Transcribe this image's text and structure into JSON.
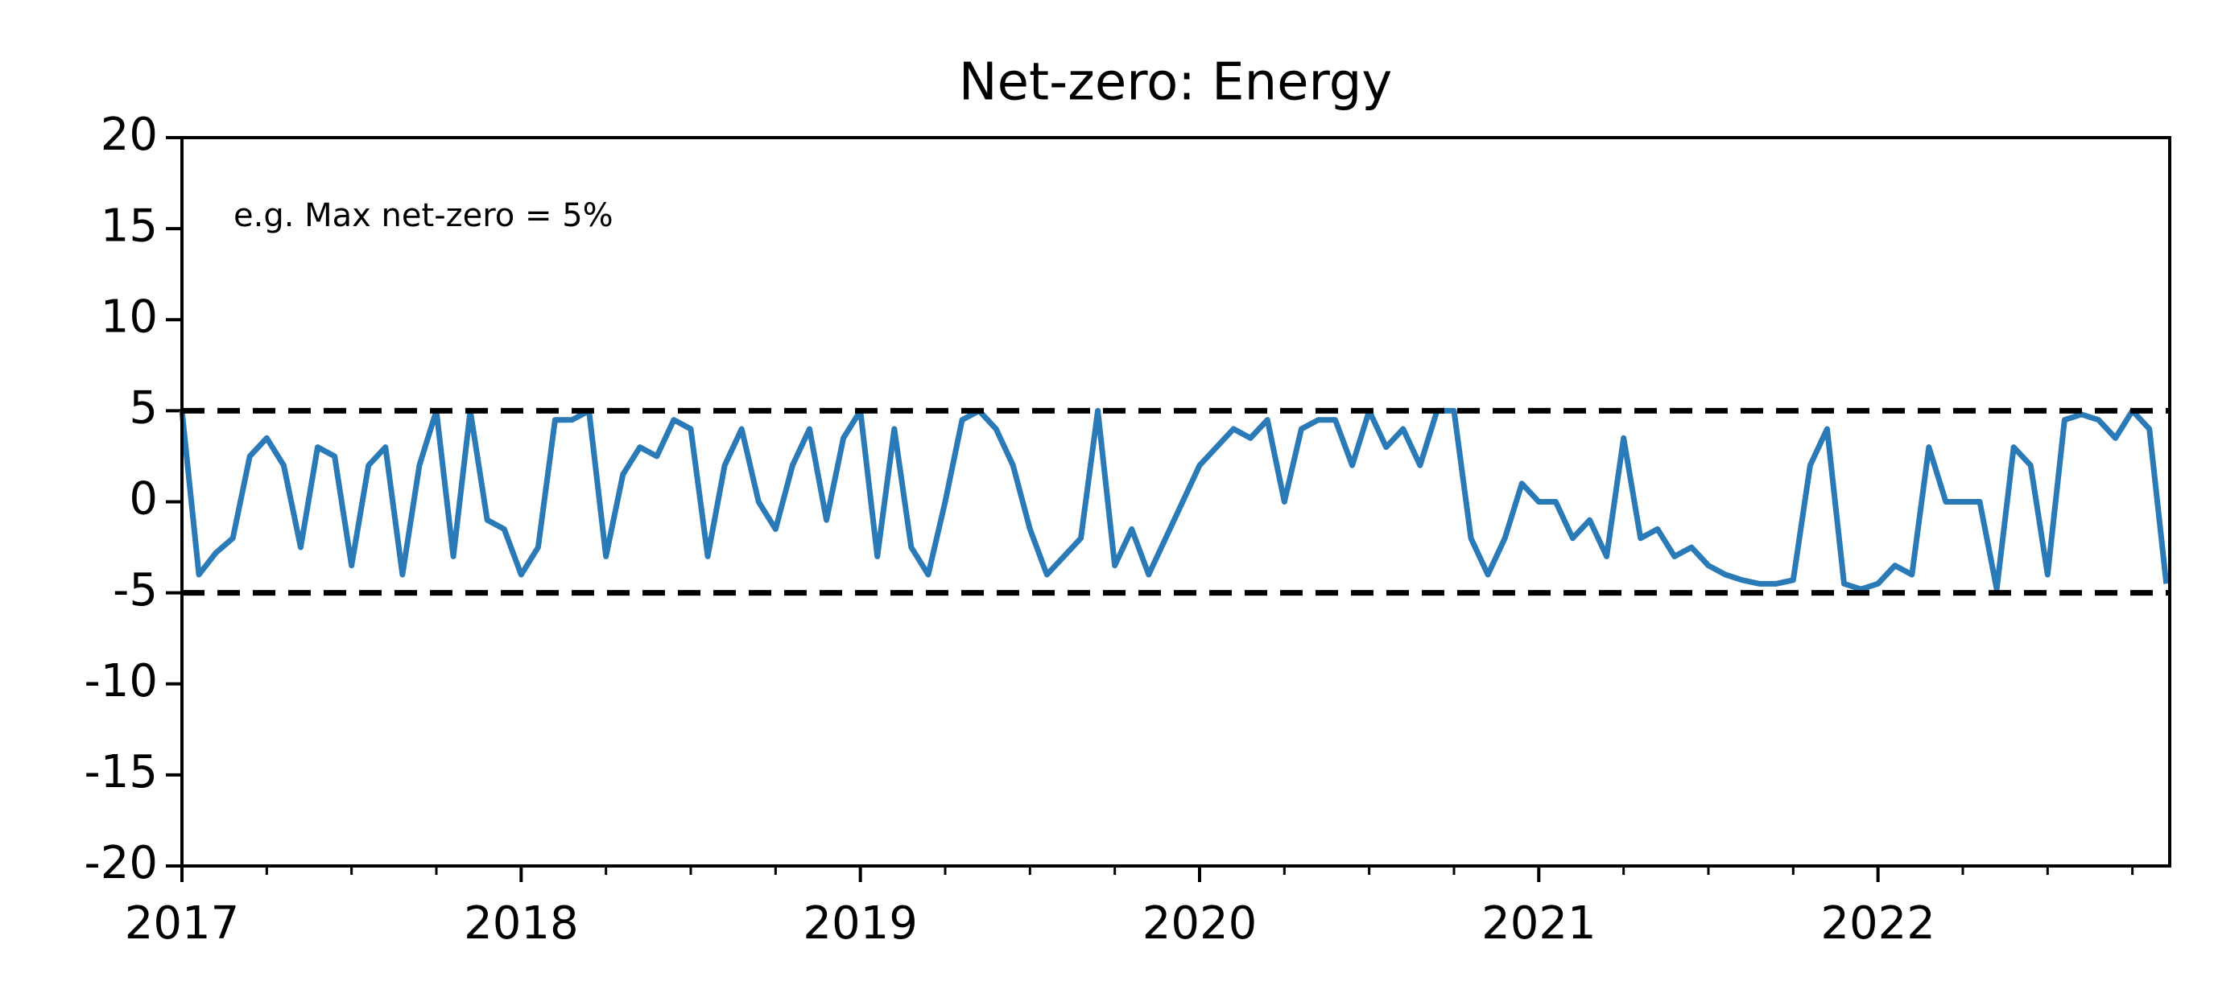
{
  "chart_data": {
    "type": "line",
    "title": "Net-zero: Energy",
    "annotation": "e.g. Max net-zero = 5%",
    "x": [
      2017,
      2017.05,
      2017.1,
      2017.15,
      2017.2,
      2017.25,
      2017.3,
      2017.35,
      2017.4,
      2017.45,
      2017.5,
      2017.55,
      2017.6,
      2017.65,
      2017.7,
      2017.75,
      2017.8,
      2017.85,
      2017.9,
      2017.95,
      2018,
      2018.05,
      2018.1,
      2018.15,
      2018.2,
      2018.25,
      2018.3,
      2018.35,
      2018.4,
      2018.45,
      2018.5,
      2018.55,
      2018.6,
      2018.65,
      2018.7,
      2018.75,
      2018.8,
      2018.85,
      2018.9,
      2018.95,
      2019,
      2019.05,
      2019.1,
      2019.15,
      2019.2,
      2019.25,
      2019.3,
      2019.35,
      2019.4,
      2019.45,
      2019.5,
      2019.55,
      2019.6,
      2019.65,
      2019.7,
      2019.75,
      2019.8,
      2019.85,
      2019.9,
      2019.95,
      2020,
      2020.05,
      2020.1,
      2020.15,
      2020.2,
      2020.25,
      2020.3,
      2020.35,
      2020.4,
      2020.45,
      2020.5,
      2020.55,
      2020.6,
      2020.65,
      2020.7,
      2020.75,
      2020.8,
      2020.85,
      2020.9,
      2020.95,
      2021,
      2021.05,
      2021.1,
      2021.15,
      2021.2,
      2021.25,
      2021.3,
      2021.35,
      2021.4,
      2021.45,
      2021.5,
      2021.55,
      2021.6,
      2021.65,
      2021.7,
      2021.75,
      2021.8,
      2021.85,
      2021.9,
      2021.95,
      2022,
      2022.05,
      2022.1,
      2022.15,
      2022.2,
      2022.25,
      2022.3,
      2022.35,
      2022.4,
      2022.45,
      2022.5,
      2022.55,
      2022.6,
      2022.65,
      2022.7,
      2022.75,
      2022.8,
      2022.85
    ],
    "series": [
      {
        "name": "Energy",
        "color": "#2a7ab8",
        "values": [
          5,
          -4,
          -2.8,
          -2,
          2.5,
          3.5,
          2,
          -2.5,
          3,
          2.5,
          -3.5,
          2,
          3,
          -4,
          2,
          5,
          -3,
          5,
          -1,
          -1.5,
          -4,
          -2.5,
          4.5,
          4.5,
          5,
          -3,
          1.5,
          3,
          2.5,
          4.5,
          4,
          -3,
          2,
          4,
          0,
          -1.5,
          2,
          4,
          -1,
          3.5,
          5,
          -3,
          4,
          -2.5,
          -4,
          0,
          4.5,
          5,
          4,
          2,
          -1.5,
          -4,
          -3,
          -2,
          5,
          -3.5,
          -1.5,
          -4,
          -2,
          0,
          2,
          3,
          4,
          3.5,
          4.5,
          0,
          4,
          4.5,
          4.5,
          2,
          5,
          3,
          4,
          2,
          5,
          5,
          -2,
          -4,
          -2,
          1,
          0,
          0,
          -2,
          -1,
          -3,
          3.5,
          -2,
          -1.5,
          -3,
          -2.5,
          -3.5,
          -4,
          -4.3,
          -4.5,
          -4.5,
          -4.3,
          2,
          4,
          -4.5,
          -4.8,
          -4.5,
          -3.5,
          -4,
          3,
          0,
          0,
          0,
          -4.8,
          3,
          2,
          -4,
          4.5,
          4.8,
          4.5,
          3.5,
          5,
          4,
          -4.5
        ]
      }
    ],
    "reference_lines": [
      5,
      -5
    ],
    "xlim": [
      2017,
      2022.86
    ],
    "xticks": [
      2017,
      2018,
      2019,
      2020,
      2021,
      2022
    ],
    "ylim": [
      -20,
      20
    ],
    "yticks": [
      -20,
      -15,
      -10,
      -5,
      0,
      5,
      10,
      15,
      20
    ],
    "grid": false
  }
}
